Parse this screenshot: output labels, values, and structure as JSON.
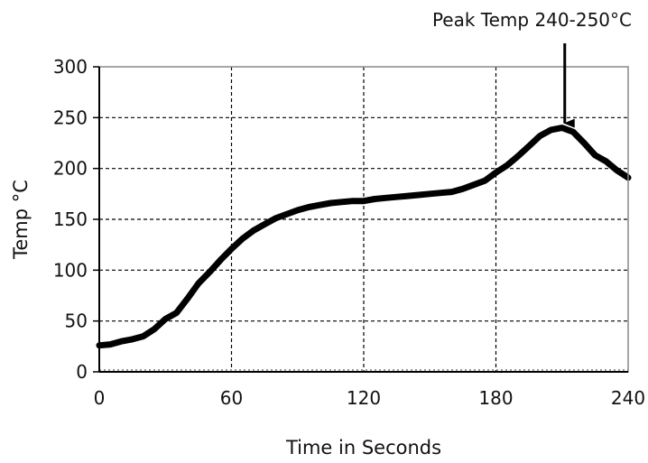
{
  "chart_data": {
    "type": "line",
    "title": "",
    "xlabel": "Time in Seconds",
    "ylabel": "Temp °C",
    "xlim": [
      0,
      240
    ],
    "ylim": [
      0,
      300
    ],
    "x_ticks": [
      0,
      60,
      120,
      180,
      240
    ],
    "y_ticks": [
      0,
      50,
      100,
      150,
      200,
      250,
      300
    ],
    "x_tick_labels": [
      "0",
      "60",
      "120",
      "180",
      "240"
    ],
    "y_tick_labels": [
      "0",
      "50",
      "100",
      "150",
      "200",
      "250",
      "300"
    ],
    "grid": true,
    "grid_style": "dashed",
    "series": [
      {
        "color": "#000000",
        "x": [
          0,
          5,
          10,
          15,
          20,
          25,
          30,
          35,
          40,
          45,
          50,
          55,
          60,
          65,
          70,
          75,
          80,
          85,
          90,
          95,
          100,
          105,
          110,
          115,
          120,
          125,
          130,
          135,
          140,
          145,
          150,
          155,
          160,
          165,
          170,
          175,
          180,
          185,
          190,
          195,
          200,
          205,
          210,
          215,
          220,
          225,
          230,
          235,
          240
        ],
        "y": [
          26,
          27,
          30,
          32,
          35,
          42,
          52,
          58,
          72,
          87,
          98,
          110,
          121,
          131,
          139,
          145,
          151,
          155,
          159,
          162,
          164,
          166,
          167,
          168,
          168,
          170,
          171,
          172,
          173,
          174,
          175,
          176,
          177,
          180,
          184,
          188,
          196,
          203,
          212,
          222,
          232,
          238,
          240,
          236,
          225,
          213,
          207,
          198,
          191
        ]
      }
    ],
    "annotations": [
      {
        "text": "Peak Temp 240-250°C",
        "x": 210,
        "y": 240
      }
    ]
  }
}
